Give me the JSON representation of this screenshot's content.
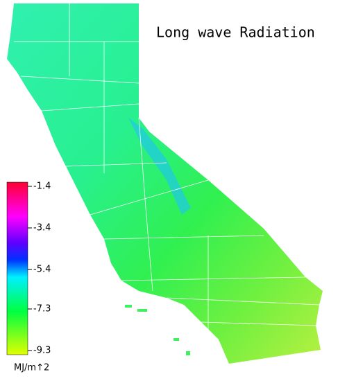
{
  "title": "Long wave Radiation",
  "legend": {
    "lim": [
      -1.2,
      -9.5
    ],
    "ticks": [
      -1.4,
      -3.4,
      -5.4,
      -7.3,
      -9.3
    ],
    "unit": "MJ/m↑2"
  }
}
